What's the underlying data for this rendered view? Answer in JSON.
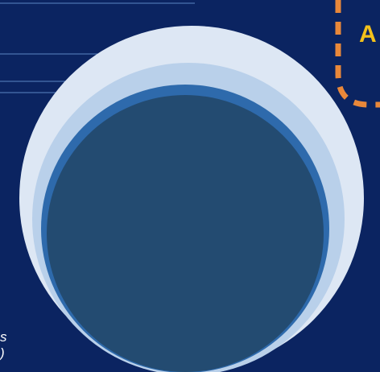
{
  "colors": {
    "background": "#0b2461",
    "circle_outer": "#dde7f4",
    "circle_second": "#b9d0ea",
    "circle_third": "#2e6aac",
    "circle_inner": "#234b71",
    "leader_line": "#5b86c2",
    "callout_border": "#e9883a",
    "callout_text": "#f3c11b"
  },
  "callout": {
    "label": "A"
  },
  "side_text": {
    "line1": "s",
    "line2": ")"
  }
}
